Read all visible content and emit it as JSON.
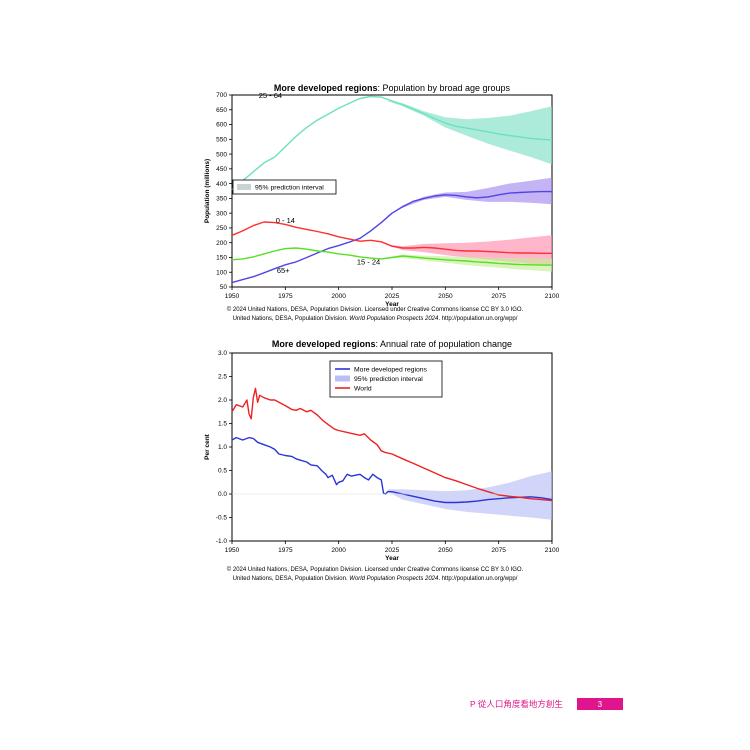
{
  "chart_data": [
    {
      "type": "line",
      "title_bold": "More developed regions",
      "title_rest": ": Population by broad age groups",
      "xlabel": "Year",
      "ylabel": "Population (millions)",
      "xlim": [
        1950,
        2100
      ],
      "ylim": [
        50,
        700
      ],
      "xticks": [
        1950,
        1975,
        2000,
        2025,
        2050,
        2075,
        2100
      ],
      "yticks": [
        50,
        100,
        150,
        200,
        250,
        300,
        350,
        400,
        450,
        500,
        550,
        600,
        650,
        700
      ],
      "legend": {
        "position": "left",
        "entries": [
          "95% prediction interval"
        ]
      },
      "series": [
        {
          "name": "25 - 64",
          "color": "#6ee0c0",
          "band_color": "#7fe0c6",
          "x": [
            1950,
            1955,
            1960,
            1965,
            1970,
            1975,
            1980,
            1985,
            1990,
            1995,
            2000,
            2005,
            2010,
            2015,
            2020,
            2025,
            2030,
            2035,
            2040,
            2045,
            2050,
            2055,
            2060,
            2065,
            2070,
            2075,
            2080,
            2085,
            2090,
            2095,
            2100
          ],
          "values": [
            380,
            410,
            440,
            470,
            490,
            525,
            560,
            590,
            615,
            635,
            655,
            672,
            688,
            695,
            693,
            680,
            667,
            652,
            637,
            620,
            605,
            594,
            588,
            582,
            575,
            568,
            563,
            558,
            553,
            550,
            548
          ],
          "band_x": [
            2023,
            2030,
            2040,
            2050,
            2060,
            2070,
            2080,
            2090,
            2100
          ],
          "band_low": [
            679,
            662,
            630,
            590,
            562,
            535,
            512,
            490,
            465
          ],
          "band_high": [
            681,
            672,
            645,
            625,
            618,
            622,
            630,
            645,
            662
          ]
        },
        {
          "name": "65+",
          "color": "#4f46e5",
          "band_color": "#a58bef",
          "x": [
            1950,
            1955,
            1960,
            1965,
            1970,
            1975,
            1980,
            1985,
            1990,
            1995,
            2000,
            2005,
            2010,
            2015,
            2020,
            2025,
            2030,
            2035,
            2040,
            2045,
            2050,
            2055,
            2060,
            2065,
            2070,
            2075,
            2080,
            2085,
            2090,
            2095,
            2100
          ],
          "values": [
            65,
            75,
            85,
            98,
            112,
            125,
            135,
            150,
            165,
            180,
            190,
            202,
            215,
            240,
            268,
            300,
            322,
            340,
            350,
            358,
            362,
            360,
            355,
            352,
            355,
            362,
            368,
            370,
            372,
            373,
            373
          ],
          "band_x": [
            2023,
            2030,
            2040,
            2050,
            2060,
            2070,
            2080,
            2090,
            2100
          ],
          "band_low": [
            290,
            318,
            345,
            355,
            345,
            338,
            338,
            335,
            330
          ],
          "band_high": [
            292,
            326,
            356,
            370,
            372,
            385,
            400,
            410,
            420
          ]
        },
        {
          "name": "0 - 14",
          "color": "#ff2f2f",
          "band_color": "#ff8fae",
          "x": [
            1950,
            1955,
            1960,
            1965,
            1970,
            1975,
            1980,
            1985,
            1990,
            1995,
            2000,
            2005,
            2010,
            2015,
            2020,
            2025,
            2030,
            2035,
            2040,
            2045,
            2050,
            2055,
            2060,
            2065,
            2070,
            2075,
            2080,
            2085,
            2090,
            2095,
            2100
          ],
          "values": [
            225,
            240,
            258,
            270,
            268,
            262,
            252,
            245,
            238,
            230,
            220,
            212,
            205,
            208,
            203,
            188,
            182,
            182,
            184,
            182,
            178,
            174,
            172,
            172,
            170,
            168,
            166,
            165,
            165,
            164,
            164
          ],
          "band_x": [
            2023,
            2030,
            2040,
            2050,
            2060,
            2070,
            2080,
            2090,
            2100
          ],
          "band_low": [
            192,
            175,
            168,
            158,
            150,
            142,
            135,
            128,
            122
          ],
          "band_high": [
            194,
            188,
            196,
            198,
            200,
            204,
            210,
            218,
            225
          ]
        },
        {
          "name": "15 - 24",
          "color": "#55e023",
          "band_color": "#c8ec9a",
          "x": [
            1950,
            1955,
            1960,
            1965,
            1970,
            1975,
            1980,
            1985,
            1990,
            1995,
            2000,
            2005,
            2010,
            2015,
            2020,
            2025,
            2030,
            2035,
            2040,
            2045,
            2050,
            2055,
            2060,
            2065,
            2070,
            2075,
            2080,
            2085,
            2090,
            2095,
            2100
          ],
          "values": [
            142,
            145,
            152,
            162,
            172,
            180,
            182,
            178,
            172,
            168,
            162,
            158,
            152,
            148,
            145,
            150,
            155,
            152,
            148,
            145,
            142,
            140,
            138,
            135,
            133,
            130,
            128,
            126,
            125,
            124,
            124
          ],
          "band_x": [
            2023,
            2030,
            2040,
            2050,
            2060,
            2070,
            2080,
            2090,
            2100
          ],
          "band_low": [
            149,
            148,
            140,
            132,
            124,
            118,
            112,
            107,
            102
          ],
          "band_high": [
            151,
            160,
            156,
            154,
            152,
            150,
            148,
            147,
            146
          ]
        }
      ],
      "credit_line1": "© 2024 United Nations, DESA, Population Division. Licensed under Creative Commons license CC BY 3.0 IGO.",
      "credit_line2_pre": "United Nations, DESA, Population Division. ",
      "credit_line2_italic": "World Population Prospects 2024",
      "credit_line2_post": ". http://population.un.org/wpp/"
    },
    {
      "type": "line",
      "title_bold": "More developed regions",
      "title_rest": ": Annual rate of population change",
      "xlabel": "Year",
      "ylabel": "Per cent",
      "xlim": [
        1950,
        2100
      ],
      "ylim": [
        -1.0,
        3.0
      ],
      "xticks": [
        1950,
        1975,
        2000,
        2025,
        2050,
        2075,
        2100
      ],
      "yticks": [
        -1.0,
        -0.5,
        0.0,
        0.5,
        1.0,
        1.5,
        2.0,
        2.5,
        3.0
      ],
      "yticklabels": [
        "-1.0",
        "-0.5",
        "0.0",
        "0.5",
        "1.0",
        "1.5",
        "2.0",
        "2.5",
        "3.0"
      ],
      "legend": {
        "position": "top-center",
        "entries": [
          "More developed regions",
          "95% prediction interval",
          "World"
        ]
      },
      "series": [
        {
          "name": "More developed regions",
          "color": "#2b35d6",
          "band_color": "#b9bef7",
          "x": [
            1950,
            1952,
            1955,
            1958,
            1960,
            1962,
            1965,
            1968,
            1970,
            1972,
            1975,
            1978,
            1980,
            1982,
            1985,
            1987,
            1990,
            1992,
            1994,
            1995,
            1997,
            1999,
            2000,
            2002,
            2004,
            2006,
            2008,
            2010,
            2012,
            2014,
            2016,
            2018,
            2020,
            2021,
            2022,
            2023,
            2025,
            2030,
            2035,
            2040,
            2045,
            2050,
            2055,
            2060,
            2065,
            2070,
            2075,
            2080,
            2085,
            2090,
            2095,
            2100
          ],
          "values": [
            1.15,
            1.2,
            1.15,
            1.2,
            1.18,
            1.1,
            1.05,
            1.0,
            0.95,
            0.85,
            0.82,
            0.8,
            0.75,
            0.72,
            0.68,
            0.62,
            0.6,
            0.5,
            0.42,
            0.35,
            0.4,
            0.2,
            0.25,
            0.28,
            0.42,
            0.38,
            0.4,
            0.42,
            0.35,
            0.3,
            0.42,
            0.35,
            0.3,
            0.02,
            0.0,
            0.05,
            0.05,
            0.0,
            -0.05,
            -0.1,
            -0.15,
            -0.18,
            -0.18,
            -0.17,
            -0.15,
            -0.12,
            -0.1,
            -0.08,
            -0.07,
            -0.06,
            -0.08,
            -0.12
          ],
          "band_x": [
            2023,
            2030,
            2040,
            2050,
            2060,
            2070,
            2080,
            2090,
            2100
          ],
          "band_low": [
            0.05,
            -0.12,
            -0.22,
            -0.32,
            -0.38,
            -0.42,
            -0.46,
            -0.5,
            -0.55
          ],
          "band_high": [
            0.1,
            0.1,
            0.08,
            0.06,
            0.08,
            0.14,
            0.24,
            0.38,
            0.48
          ]
        },
        {
          "name": "World",
          "color": "#ee2222",
          "x": [
            1950,
            1952,
            1955,
            1957,
            1958,
            1959,
            1960,
            1961,
            1962,
            1963,
            1965,
            1968,
            1970,
            1972,
            1975,
            1978,
            1980,
            1982,
            1985,
            1987,
            1990,
            1993,
            1995,
            1998,
            2000,
            2005,
            2010,
            2012,
            2015,
            2018,
            2020,
            2022,
            2025,
            2030,
            2035,
            2040,
            2045,
            2050,
            2055,
            2060,
            2065,
            2070,
            2075,
            2080,
            2085,
            2090,
            2095,
            2100
          ],
          "values": [
            1.75,
            1.9,
            1.85,
            2.0,
            1.7,
            1.6,
            2.05,
            2.25,
            1.95,
            2.1,
            2.05,
            2.0,
            2.0,
            1.95,
            1.88,
            1.8,
            1.78,
            1.82,
            1.75,
            1.78,
            1.68,
            1.55,
            1.48,
            1.38,
            1.35,
            1.3,
            1.25,
            1.28,
            1.15,
            1.05,
            0.92,
            0.88,
            0.85,
            0.75,
            0.65,
            0.55,
            0.45,
            0.35,
            0.28,
            0.2,
            0.12,
            0.05,
            -0.02,
            -0.05,
            -0.07,
            -0.1,
            -0.12,
            -0.14
          ]
        }
      ],
      "credit_line1": "© 2024 United Nations, DESA, Population Division. Licensed under Creative Commons license CC BY 3.0 IGO.",
      "credit_line2_pre": "United Nations, DESA, Population Division. ",
      "credit_line2_italic": "World Population Prospects 2024",
      "credit_line2_post": ". http://population.un.org/wpp/"
    }
  ],
  "footer": {
    "title": "P 從人口角度看地方創生",
    "page_number": "3"
  },
  "colors": {
    "accent": "#e0158c",
    "frame": "#000000"
  }
}
